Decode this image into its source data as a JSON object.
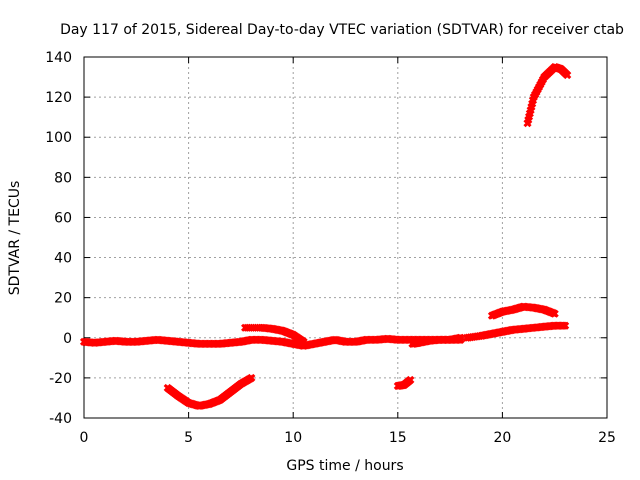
{
  "chart_data": {
    "type": "scatter",
    "title": "Day 117 of 2015, Sidereal Day-to-day VTEC variation (SDTVAR) for receiver ctab",
    "xlabel": "GPS time / hours",
    "ylabel": "SDTVAR / TECUs",
    "xlim": [
      0,
      25
    ],
    "ylim": [
      -40,
      140
    ],
    "xticks": [
      "0",
      "5",
      "10",
      "15",
      "20",
      "25"
    ],
    "yticks": [
      "-40",
      "-20",
      "0",
      "20",
      "40",
      "60",
      "80",
      "100",
      "120",
      "140"
    ],
    "grid": true,
    "legend": "none",
    "marker_color": "#ff0000",
    "series": [
      {
        "x": [
          0,
          0.5,
          1,
          1.5,
          2,
          2.5,
          3,
          3.5,
          4,
          4.5,
          5,
          5.5,
          6,
          6.5,
          7,
          7.5,
          8,
          8.5,
          9,
          9.5,
          10,
          10.5,
          11,
          11.5,
          12,
          12.5,
          13,
          13.5,
          14,
          14.5,
          15,
          15.5,
          16,
          16.5,
          17,
          17.5,
          18
        ],
        "y": [
          -2,
          -2.5,
          -2,
          -1.5,
          -2,
          -2,
          -1.5,
          -1,
          -1.5,
          -2,
          -2.5,
          -3,
          -3,
          -3,
          -2.5,
          -2,
          -1,
          -1,
          -1.5,
          -2,
          -3,
          -4,
          -3,
          -2,
          -1,
          -2,
          -2,
          -1,
          -1,
          -0.5,
          -1,
          -1,
          -1,
          -1,
          -1,
          -1,
          -1
        ]
      },
      {
        "x": [
          4,
          4.5,
          5,
          5.5,
          6,
          6.5,
          7,
          7.5,
          8
        ],
        "y": [
          -25,
          -29,
          -32.5,
          -34,
          -33,
          -31,
          -27,
          -23,
          -20
        ]
      },
      {
        "x": [
          7.7,
          8.5,
          9,
          9.5,
          10,
          10.5
        ],
        "y": [
          5,
          5,
          4.5,
          3.5,
          1.5,
          -2
        ]
      },
      {
        "x": [
          15,
          15.3,
          15.6
        ],
        "y": [
          -24,
          -23.5,
          -21
        ]
      },
      {
        "x": [
          15.7,
          16,
          16.5,
          17,
          17.5,
          18
        ],
        "y": [
          -3,
          -2.5,
          -1.5,
          -1,
          -1,
          0
        ]
      },
      {
        "x": [
          18.3,
          19,
          19.5,
          20,
          20.5,
          21,
          21.5,
          22,
          22.5,
          23
        ],
        "y": [
          0,
          1,
          2,
          3,
          4,
          4.5,
          5,
          5.5,
          6,
          6
        ]
      },
      {
        "x": [
          19.5,
          20,
          20.5,
          21,
          21.5,
          22,
          22.5
        ],
        "y": [
          11,
          13,
          14,
          15.5,
          15,
          14,
          12
        ]
      },
      {
        "x": [
          21.2,
          21.5,
          22,
          22.5,
          22.8,
          23.1
        ],
        "y": [
          107,
          120,
          130,
          135,
          134,
          131
        ]
      }
    ]
  }
}
